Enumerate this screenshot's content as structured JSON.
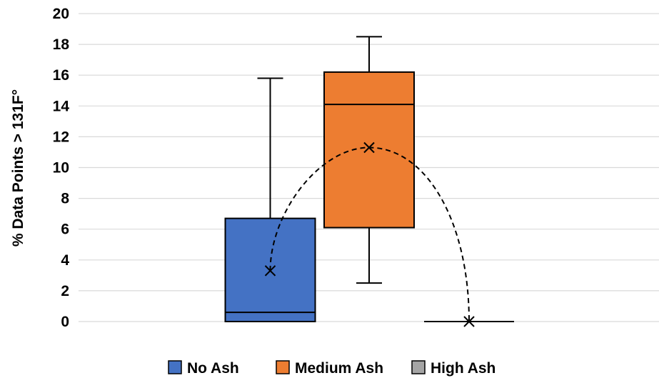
{
  "chart_data": {
    "type": "box",
    "title": "",
    "xlabel": "",
    "ylabel": "% Data Points > 131F°",
    "ylim": [
      0,
      20
    ],
    "yticks": [
      0,
      2,
      4,
      6,
      8,
      10,
      12,
      14,
      16,
      18,
      20
    ],
    "grid": true,
    "legend_position": "bottom",
    "mean_line_style": "dashed",
    "series": [
      {
        "name": "No Ash",
        "color": "#4472C4",
        "min": 0,
        "q1": 0,
        "median": 0.6,
        "q3": 6.7,
        "max": 15.8,
        "mean": 3.3
      },
      {
        "name": "Medium Ash",
        "color": "#ED7D31",
        "min": 2.5,
        "q1": 6.1,
        "median": 14.1,
        "q3": 16.2,
        "max": 18.5,
        "mean": 11.3
      },
      {
        "name": "High Ash",
        "color": "#A5A5A5",
        "min": 0,
        "q1": 0,
        "median": 0,
        "q3": 0,
        "max": 0,
        "mean": 0
      }
    ]
  }
}
